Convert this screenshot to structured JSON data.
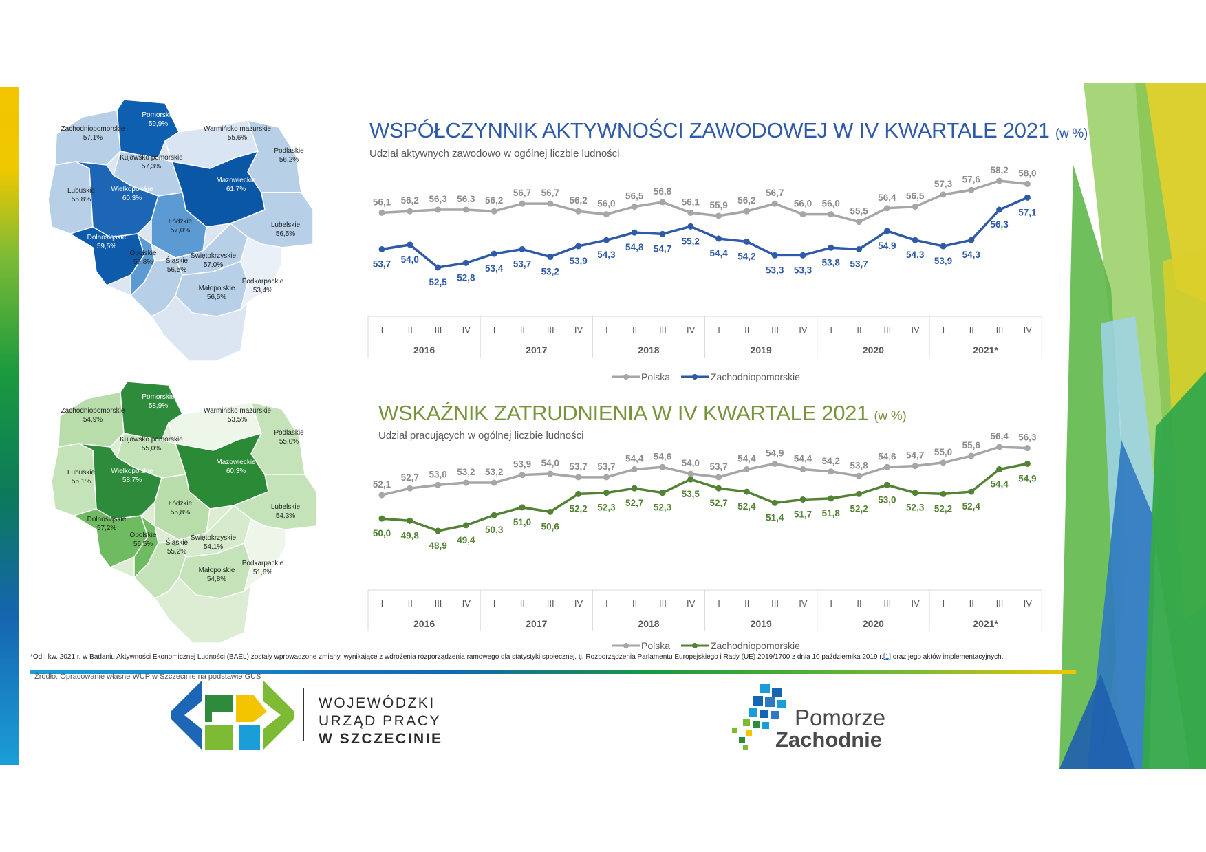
{
  "colors": {
    "polska": "#a6a6a6",
    "zachodnio_activity": "#2e5aa8",
    "zachodnio_employment": "#548235",
    "title_activity": "#2e5aa8",
    "title_employment": "#77933c"
  },
  "chart_activity": {
    "title": "WSPÓŁCZYNNIK AKTYWNOŚCI ZAWODOWEJ W IV KWARTALE 2021",
    "unit": "(w %)",
    "subtitle": "Udział aktywnych zawodowo w ogólnej liczbie ludności",
    "legend": [
      "Polska",
      "Zachodniopomorskie"
    ]
  },
  "chart_employment": {
    "title": "WSKAŹNIK ZATRUDNIENIA W IV KWARTALE 2021",
    "unit": "(w %)",
    "subtitle": "Udział pracujących w ogólnej liczbie ludności",
    "legend": [
      "Polska",
      "Zachodniopomorskie"
    ]
  },
  "chart_data": [
    {
      "type": "line",
      "title": "WSPÓŁCZYNNIK AKTYWNOŚCI ZAWODOWEJ W IV KWARTALE 2021 (w %)",
      "quarters": [
        "I",
        "II",
        "III",
        "IV"
      ],
      "years": [
        "2016",
        "2017",
        "2018",
        "2019",
        "2020",
        "2021*"
      ],
      "series": [
        {
          "name": "Polska",
          "values": [
            56.1,
            56.2,
            56.3,
            56.3,
            56.2,
            56.7,
            56.7,
            56.2,
            56.0,
            56.5,
            56.8,
            56.1,
            55.9,
            56.2,
            56.7,
            56.0,
            56.0,
            55.5,
            56.4,
            56.5,
            57.3,
            57.6,
            58.2,
            58.0
          ]
        },
        {
          "name": "Zachodniopomorskie",
          "values": [
            53.7,
            54.0,
            52.5,
            52.8,
            53.4,
            53.7,
            53.2,
            53.9,
            54.3,
            54.8,
            54.7,
            55.2,
            54.4,
            54.2,
            53.3,
            53.3,
            53.8,
            53.7,
            54.9,
            54.3,
            53.9,
            54.3,
            56.3,
            57.1
          ]
        }
      ]
    },
    {
      "type": "line",
      "title": "WSKAŹNIK ZATRUDNIENIA W IV KWARTALE 2021 (w %)",
      "quarters": [
        "I",
        "II",
        "III",
        "IV"
      ],
      "years": [
        "2016",
        "2017",
        "2018",
        "2019",
        "2020",
        "2021*"
      ],
      "series": [
        {
          "name": "Polska",
          "values": [
            52.1,
            52.7,
            53.0,
            53.2,
            53.2,
            53.9,
            54.0,
            53.7,
            53.7,
            54.4,
            54.6,
            54.0,
            53.7,
            54.4,
            54.9,
            54.4,
            54.2,
            53.8,
            54.6,
            54.7,
            55.0,
            55.6,
            56.4,
            56.3
          ]
        },
        {
          "name": "Zachodniopomorskie",
          "values": [
            50.0,
            49.8,
            48.9,
            49.4,
            50.3,
            51.0,
            50.6,
            52.2,
            52.3,
            52.7,
            52.3,
            53.5,
            52.7,
            52.4,
            51.4,
            51.7,
            51.8,
            52.2,
            53.0,
            52.3,
            52.2,
            52.4,
            54.4,
            54.9
          ]
        }
      ]
    }
  ],
  "map_activity": [
    {
      "name": "Pomorskie",
      "value": "59,9%"
    },
    {
      "name": "Warmińsko mazurskie",
      "value": "55,6%"
    },
    {
      "name": "Zachodniopomorskie",
      "value": "57,1%"
    },
    {
      "name": "Podlaskie",
      "value": "56,2%"
    },
    {
      "name": "Kujawsko pomorskie",
      "value": "57,3%"
    },
    {
      "name": "Lubuskie",
      "value": "55,8%"
    },
    {
      "name": "Wielkopolskie",
      "value": "60,3%"
    },
    {
      "name": "Mazowieckie",
      "value": "61,7%"
    },
    {
      "name": "Łódzkie",
      "value": "57,0%"
    },
    {
      "name": "Lubelskie",
      "value": "56,5%"
    },
    {
      "name": "Dolnośląskie",
      "value": "59,5%"
    },
    {
      "name": "Opolskie",
      "value": "57,8%"
    },
    {
      "name": "Śląskie",
      "value": "56,5%"
    },
    {
      "name": "Świętokrzyskie",
      "value": "57,0%"
    },
    {
      "name": "Małopolskie",
      "value": "56,5%"
    },
    {
      "name": "Podkarpackie",
      "value": "53,4%"
    }
  ],
  "map_employment": [
    {
      "name": "Pomorskie",
      "value": "58,9%"
    },
    {
      "name": "Warmińsko mazurskie",
      "value": "53,5%"
    },
    {
      "name": "Zachodniopomorskie",
      "value": "54,9%"
    },
    {
      "name": "Podlaskie",
      "value": "55,0%"
    },
    {
      "name": "Kujawsko pomorskie",
      "value": "55,0%"
    },
    {
      "name": "Lubuskie",
      "value": "55,1%"
    },
    {
      "name": "Wielkopolskie",
      "value": "58,7%"
    },
    {
      "name": "Mazowieckie",
      "value": "60,3%"
    },
    {
      "name": "Łódzkie",
      "value": "55,8%"
    },
    {
      "name": "Lubelskie",
      "value": "54,3%"
    },
    {
      "name": "Dolnośląskie",
      "value": "57,2%"
    },
    {
      "name": "Opolskie",
      "value": "56,5%"
    },
    {
      "name": "Śląskie",
      "value": "55,2%"
    },
    {
      "name": "Świętokrzyskie",
      "value": "54,1%"
    },
    {
      "name": "Małopolskie",
      "value": "54,8%"
    },
    {
      "name": "Podkarpackie",
      "value": "51,6%"
    }
  ],
  "footnote": {
    "text": "*Od I kw. 2021 r. w Badaniu Aktywności Ekonomicznej Ludności (BAEL) zostały wprowadzone zmiany, wynikające z wdrożenia rozporządzenia ramowego dla statystyki społecznej, tj. Rozporządzenia Parlamentu Europejskiego i Rady (UE) 2019/1700 z dnia 10 października 2019 r.",
    "ref": "[1]",
    "tail": " oraz jego aktów implementacyjnych."
  },
  "source": "Źródło: Opracowanie własne WUP w Szczecinie na podstawie GUS",
  "logo_wup": {
    "line1": "WOJEWÓDZKI",
    "line2": "URZĄD PRACY",
    "line3": "W  SZCZECINIE"
  },
  "logo_pz": {
    "line1": "Pomorze",
    "line2": "Zachodnie"
  }
}
